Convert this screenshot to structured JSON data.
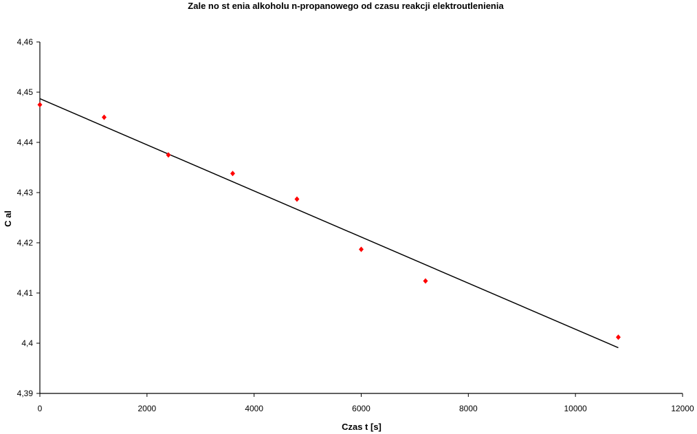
{
  "chart_data": {
    "type": "scatter",
    "title": "Zale  no      st    enia alkoholu n-propanowego od czasu reakcji elektroutlenienia",
    "xlabel": "Czas t [s]",
    "ylabel": "C al",
    "xlim": [
      0,
      12000
    ],
    "ylim": [
      4.39,
      4.46
    ],
    "x_ticks": [
      0,
      2000,
      4000,
      6000,
      8000,
      10000,
      12000
    ],
    "x_tick_labels": [
      "0",
      "2000",
      "4000",
      "6000",
      "8000",
      "10000",
      "12000"
    ],
    "y_ticks": [
      4.39,
      4.4,
      4.41,
      4.42,
      4.43,
      4.44,
      4.45,
      4.46
    ],
    "y_tick_labels": [
      "4,39",
      "4,4",
      "4,41",
      "4,42",
      "4,43",
      "4,44",
      "4,45",
      "4,46"
    ],
    "grid": false,
    "legend": "none",
    "series": [
      {
        "points": [
          [
            0,
            4.4475
          ],
          [
            1200,
            4.445
          ],
          [
            2400,
            4.4375
          ],
          [
            3600,
            4.4338
          ],
          [
            4800,
            4.4287
          ],
          [
            6000,
            4.4187
          ],
          [
            7200,
            4.4124
          ],
          [
            10800,
            4.4012
          ]
        ],
        "color": "#ff0000"
      }
    ],
    "trendline": {
      "x": [
        0,
        10800
      ],
      "y": [
        4.4487,
        4.3991
      ],
      "color": "#000000"
    }
  }
}
